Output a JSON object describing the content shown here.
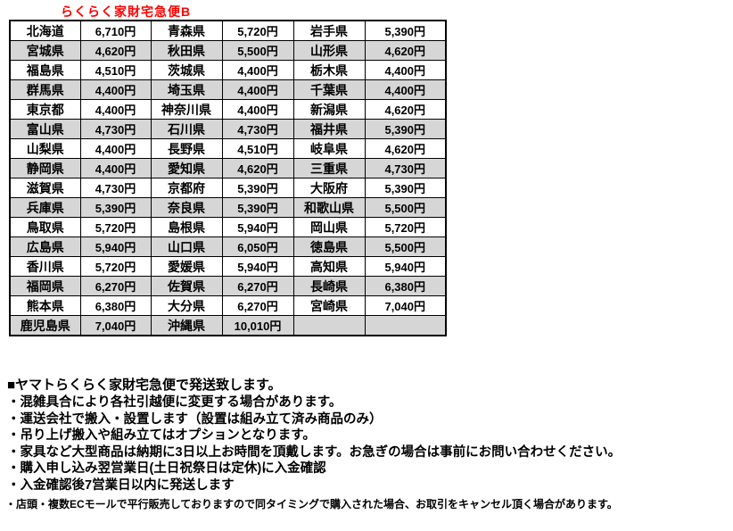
{
  "title": "らくらく家財宅急便B",
  "table": {
    "rows": [
      [
        "北海道",
        "6,710円",
        "青森県",
        "5,720円",
        "岩手県",
        "5,390円"
      ],
      [
        "宮城県",
        "4,620円",
        "秋田県",
        "5,500円",
        "山形県",
        "4,620円"
      ],
      [
        "福島県",
        "4,510円",
        "茨城県",
        "4,400円",
        "栃木県",
        "4,400円"
      ],
      [
        "群馬県",
        "4,400円",
        "埼玉県",
        "4,400円",
        "千葉県",
        "4,400円"
      ],
      [
        "東京都",
        "4,400円",
        "神奈川県",
        "4,400円",
        "新潟県",
        "4,620円"
      ],
      [
        "富山県",
        "4,730円",
        "石川県",
        "4,730円",
        "福井県",
        "5,390円"
      ],
      [
        "山梨県",
        "4,400円",
        "長野県",
        "4,510円",
        "岐阜県",
        "4,620円"
      ],
      [
        "静岡県",
        "4,400円",
        "愛知県",
        "4,620円",
        "三重県",
        "4,730円"
      ],
      [
        "滋賀県",
        "4,730円",
        "京都府",
        "5,390円",
        "大阪府",
        "5,390円"
      ],
      [
        "兵庫県",
        "5,390円",
        "奈良県",
        "5,390円",
        "和歌山県",
        "5,500円"
      ],
      [
        "鳥取県",
        "5,720円",
        "島根県",
        "5,940円",
        "岡山県",
        "5,720円"
      ],
      [
        "広島県",
        "5,940円",
        "山口県",
        "6,050円",
        "徳島県",
        "5,500円"
      ],
      [
        "香川県",
        "5,720円",
        "愛媛県",
        "5,940円",
        "高知県",
        "5,940円"
      ],
      [
        "福岡県",
        "6,270円",
        "佐賀県",
        "6,270円",
        "長崎県",
        "6,380円"
      ],
      [
        "熊本県",
        "6,380円",
        "大分県",
        "6,270円",
        "宮崎県",
        "7,040円"
      ],
      [
        "鹿児島県",
        "7,040円",
        "沖縄県",
        "10,010円",
        "",
        ""
      ]
    ]
  },
  "notes": {
    "heading": "■ヤマトらくらく家財宅急便で発送致します。",
    "bullets": [
      "・混雑具合により各社引越便に変更する場合があります。",
      "・運送会社で搬入・設置します（設置は組み立て済み商品のみ）",
      "・吊り上げ搬入や組み立てはオプションとなります。",
      "・家具など大型商品は納期に3日以上お時間を頂戴します。お急ぎの場合は事前にお問い合わせください。",
      "・購入申し込み翌営業日(土日祝祭日は定休)に入金確認",
      "・入金確認後7営業日以内に発送します"
    ],
    "fine_print": "・店頭・複数ECモールで平行販売しておりますので同タイミングで購入された場合、お取引をキャンセル頂く場合があります。"
  },
  "colors": {
    "title": "#ff0000",
    "row_shade": "#d6d6d6",
    "border": "#000000"
  }
}
